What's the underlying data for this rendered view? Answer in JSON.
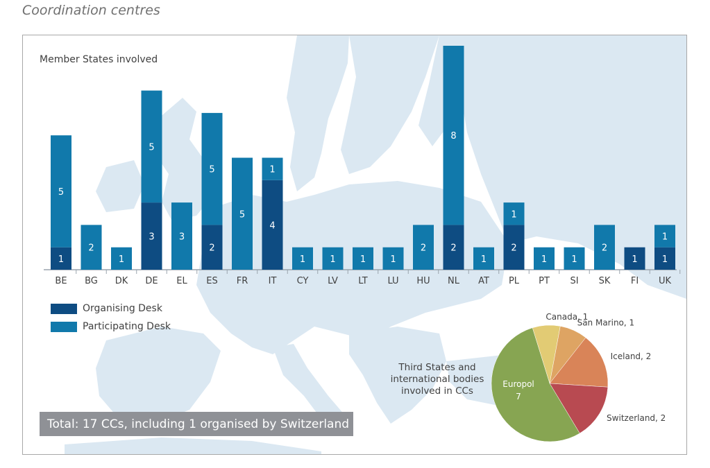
{
  "page_title": "Coordination centres",
  "colors": {
    "organising": "#0e4c82",
    "participating": "#1179ab",
    "map_land": "#dbe8f2",
    "axis": "#9aa4ad",
    "total_box": "#8f9196"
  },
  "legend": {
    "organising": "Organising Desk",
    "participating": "Participating Desk"
  },
  "total_text": "Total: 17 CCs, including 1 organised by Switzerland",
  "pie_caption": [
    "Third States and",
    "international bodies",
    "involved in CCs"
  ],
  "chart_data": [
    {
      "type": "bar",
      "stacked": true,
      "title": "Member States involved",
      "categories": [
        "BE",
        "BG",
        "DK",
        "DE",
        "EL",
        "ES",
        "FR",
        "IT",
        "CY",
        "LV",
        "LT",
        "LU",
        "HU",
        "NL",
        "AT",
        "PL",
        "PT",
        "SI",
        "SK",
        "FI",
        "UK"
      ],
      "series": [
        {
          "name": "Organising Desk",
          "color": "#0e4c82",
          "values": [
            1,
            0,
            0,
            3,
            0,
            2,
            0,
            4,
            0,
            0,
            0,
            0,
            0,
            2,
            0,
            2,
            0,
            0,
            0,
            1,
            1
          ]
        },
        {
          "name": "Participating Desk",
          "color": "#1179ab",
          "values": [
            5,
            2,
            1,
            5,
            3,
            5,
            5,
            1,
            1,
            1,
            1,
            1,
            2,
            8,
            1,
            1,
            1,
            1,
            2,
            0,
            1
          ]
        }
      ],
      "ylim": [
        0,
        10
      ],
      "legend": "bottom-left",
      "grid": false
    },
    {
      "type": "pie",
      "title": "Third States and international bodies involved in CCs",
      "slices": [
        {
          "label": "Canada",
          "value": 1,
          "color": "#e2cb74"
        },
        {
          "label": "San Marino",
          "value": 1,
          "color": "#dea463"
        },
        {
          "label": "Iceland",
          "value": 2,
          "color": "#d98458"
        },
        {
          "label": "Switzerland",
          "value": 2,
          "color": "#b84a51"
        },
        {
          "label": "Europol",
          "value": 7,
          "color": "#87a552"
        }
      ]
    }
  ]
}
